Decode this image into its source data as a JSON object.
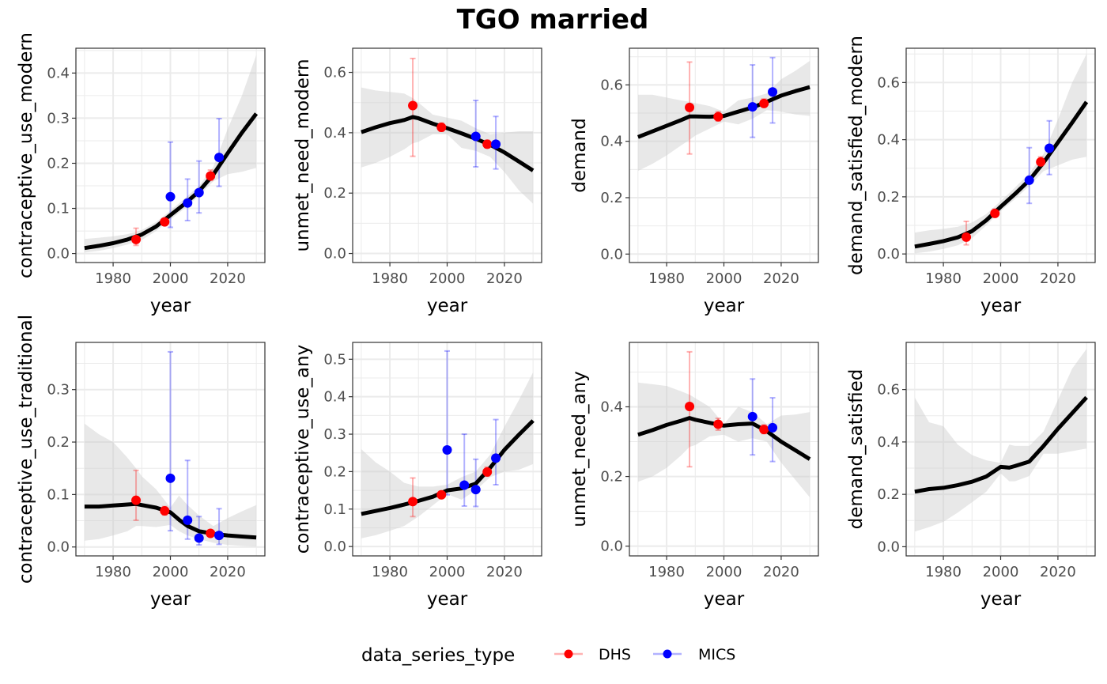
{
  "chart_data": {
    "type": "line",
    "title": "TGO married",
    "legend": {
      "title": "data_series_type",
      "position": "bottom",
      "entries": [
        {
          "name": "DHS",
          "color": "#ff0000"
        },
        {
          "name": "MICS",
          "color": "#0000ff"
        }
      ]
    },
    "colors": {
      "fit_line": "#000000",
      "ribbon": "#e6e6e6",
      "grid": "#ebebeb",
      "panel_border": "#333333"
    },
    "x_axis": {
      "label": "year",
      "range": [
        1970,
        2030
      ],
      "ticks": [
        1980,
        2000,
        2020
      ],
      "tick_labels": [
        "1980",
        "2000",
        "2020"
      ]
    },
    "panels": [
      {
        "ylabel": "contraceptive_use_modern",
        "ylim": [
          -0.02,
          0.455
        ],
        "yticks": [
          0.0,
          0.1,
          0.2,
          0.3,
          0.4
        ],
        "ytick_labels": [
          "0.0",
          "0.1",
          "0.2",
          "0.3",
          "0.4"
        ],
        "fit": {
          "x": [
            1970,
            1975,
            1980,
            1985,
            1990,
            1995,
            2000,
            2005,
            2010,
            2015,
            2020,
            2025,
            2030
          ],
          "median": [
            0.012,
            0.017,
            0.023,
            0.031,
            0.042,
            0.06,
            0.085,
            0.11,
            0.138,
            0.175,
            0.222,
            0.268,
            0.31
          ],
          "lower": [
            0.002,
            0.006,
            0.012,
            0.02,
            0.03,
            0.05,
            0.075,
            0.1,
            0.128,
            0.16,
            0.176,
            0.181,
            0.19
          ],
          "upper": [
            0.032,
            0.035,
            0.038,
            0.043,
            0.052,
            0.07,
            0.095,
            0.122,
            0.15,
            0.192,
            0.276,
            0.35,
            0.44
          ]
        },
        "observations": [
          {
            "series": "DHS",
            "year": 1988,
            "value": 0.031,
            "lower": 0.018,
            "upper": 0.056
          },
          {
            "series": "DHS",
            "year": 1998,
            "value": 0.07,
            "lower": 0.066,
            "upper": 0.075
          },
          {
            "series": "DHS",
            "year": 2014,
            "value": 0.172,
            "lower": 0.162,
            "upper": 0.185
          },
          {
            "series": "MICS",
            "year": 2000,
            "value": 0.126,
            "lower": 0.058,
            "upper": 0.247
          },
          {
            "series": "MICS",
            "year": 2006,
            "value": 0.112,
            "lower": 0.073,
            "upper": 0.165
          },
          {
            "series": "MICS",
            "year": 2010,
            "value": 0.135,
            "lower": 0.09,
            "upper": 0.205
          },
          {
            "series": "MICS",
            "year": 2017,
            "value": 0.213,
            "lower": 0.149,
            "upper": 0.299
          }
        ]
      },
      {
        "ylabel": "unmet_need_modern",
        "ylim": [
          -0.03,
          0.68
        ],
        "yticks": [
          0.0,
          0.2,
          0.4,
          0.6
        ],
        "ytick_labels": [
          "0.0",
          "0.2",
          "0.4",
          "0.6"
        ],
        "fit": {
          "x": [
            1970,
            1975,
            1980,
            1985,
            1988,
            1990,
            1995,
            2000,
            2005,
            2010,
            2015,
            2020,
            2025,
            2030
          ],
          "median": [
            0.402,
            0.418,
            0.432,
            0.442,
            0.452,
            0.448,
            0.43,
            0.415,
            0.398,
            0.38,
            0.36,
            0.335,
            0.305,
            0.275
          ],
          "lower": [
            0.285,
            0.3,
            0.32,
            0.345,
            0.365,
            0.37,
            0.395,
            0.395,
            0.35,
            0.34,
            0.32,
            0.27,
            0.21,
            0.165
          ],
          "upper": [
            0.55,
            0.54,
            0.535,
            0.53,
            0.515,
            0.5,
            0.46,
            0.45,
            0.44,
            0.415,
            0.395,
            0.4,
            0.405,
            0.405
          ]
        },
        "observations": [
          {
            "series": "DHS",
            "year": 1988,
            "value": 0.49,
            "lower": 0.322,
            "upper": 0.646
          },
          {
            "series": "DHS",
            "year": 1998,
            "value": 0.418,
            "lower": 0.405,
            "upper": 0.432
          },
          {
            "series": "DHS",
            "year": 2014,
            "value": 0.362,
            "lower": 0.35,
            "upper": 0.375
          },
          {
            "series": "MICS",
            "year": 2010,
            "value": 0.388,
            "lower": 0.287,
            "upper": 0.507
          },
          {
            "series": "MICS",
            "year": 2017,
            "value": 0.362,
            "lower": 0.28,
            "upper": 0.454
          }
        ]
      },
      {
        "ylabel": "demand",
        "ylim": [
          -0.03,
          0.73
        ],
        "yticks": [
          0.0,
          0.2,
          0.4,
          0.6
        ],
        "ytick_labels": [
          "0.0",
          "0.2",
          "0.4",
          "0.6"
        ],
        "fit": {
          "x": [
            1970,
            1975,
            1980,
            1985,
            1988,
            1990,
            1995,
            2000,
            2005,
            2010,
            2015,
            2020,
            2025,
            2030
          ],
          "median": [
            0.415,
            0.435,
            0.455,
            0.475,
            0.488,
            0.488,
            0.487,
            0.49,
            0.505,
            0.52,
            0.54,
            0.562,
            0.578,
            0.592
          ],
          "lower": [
            0.295,
            0.32,
            0.35,
            0.385,
            0.405,
            0.42,
            0.445,
            0.47,
            0.46,
            0.48,
            0.51,
            0.505,
            0.495,
            0.49
          ],
          "upper": [
            0.565,
            0.565,
            0.555,
            0.545,
            0.54,
            0.535,
            0.525,
            0.505,
            0.545,
            0.555,
            0.57,
            0.62,
            0.65,
            0.685
          ]
        },
        "observations": [
          {
            "series": "DHS",
            "year": 1988,
            "value": 0.52,
            "lower": 0.355,
            "upper": 0.681
          },
          {
            "series": "DHS",
            "year": 1998,
            "value": 0.487,
            "lower": 0.472,
            "upper": 0.505
          },
          {
            "series": "DHS",
            "year": 2014,
            "value": 0.534,
            "lower": 0.522,
            "upper": 0.55
          },
          {
            "series": "MICS",
            "year": 2010,
            "value": 0.522,
            "lower": 0.414,
            "upper": 0.671
          },
          {
            "series": "MICS",
            "year": 2017,
            "value": 0.575,
            "lower": 0.465,
            "upper": 0.697
          }
        ]
      },
      {
        "ylabel": "demand_satisfied_modern",
        "ylim": [
          -0.03,
          0.72
        ],
        "yticks": [
          0.0,
          0.2,
          0.4,
          0.6
        ],
        "ytick_labels": [
          "0.0",
          "0.2",
          "0.4",
          "0.6"
        ],
        "fit": {
          "x": [
            1970,
            1975,
            1980,
            1985,
            1990,
            1995,
            2000,
            2005,
            2010,
            2015,
            2020,
            2025,
            2030
          ],
          "median": [
            0.026,
            0.035,
            0.045,
            0.058,
            0.08,
            0.118,
            0.165,
            0.21,
            0.258,
            0.32,
            0.39,
            0.46,
            0.532
          ],
          "lower": [
            0.002,
            0.008,
            0.018,
            0.03,
            0.055,
            0.1,
            0.15,
            0.192,
            0.238,
            0.29,
            0.31,
            0.33,
            0.34
          ],
          "upper": [
            0.075,
            0.083,
            0.088,
            0.095,
            0.11,
            0.14,
            0.185,
            0.232,
            0.282,
            0.35,
            0.47,
            0.6,
            0.7
          ]
        },
        "observations": [
          {
            "series": "DHS",
            "year": 1988,
            "value": 0.059,
            "lower": 0.032,
            "upper": 0.114
          },
          {
            "series": "DHS",
            "year": 1998,
            "value": 0.142,
            "lower": 0.132,
            "upper": 0.157
          },
          {
            "series": "DHS",
            "year": 2014,
            "value": 0.322,
            "lower": 0.308,
            "upper": 0.34
          },
          {
            "series": "MICS",
            "year": 2010,
            "value": 0.258,
            "lower": 0.177,
            "upper": 0.372
          },
          {
            "series": "MICS",
            "year": 2017,
            "value": 0.37,
            "lower": 0.278,
            "upper": 0.466
          }
        ]
      },
      {
        "ylabel": "contraceptive_use_traditional",
        "ylim": [
          -0.017,
          0.39
        ],
        "yticks": [
          0.0,
          0.1,
          0.2,
          0.3
        ],
        "ytick_labels": [
          "0.0",
          "0.1",
          "0.2",
          "0.3"
        ],
        "fit": {
          "x": [
            1970,
            1975,
            1980,
            1985,
            1988,
            1990,
            1995,
            2000,
            2003,
            2006,
            2010,
            2015,
            2020,
            2025,
            2030
          ],
          "median": [
            0.077,
            0.077,
            0.079,
            0.081,
            0.082,
            0.08,
            0.075,
            0.066,
            0.052,
            0.04,
            0.03,
            0.025,
            0.022,
            0.02,
            0.018
          ],
          "lower": [
            0.012,
            0.015,
            0.022,
            0.03,
            0.04,
            0.04,
            0.038,
            0.042,
            0.03,
            0.022,
            0.015,
            0.008,
            0.004,
            0.002,
            0.001
          ],
          "upper": [
            0.235,
            0.215,
            0.2,
            0.17,
            0.15,
            0.135,
            0.11,
            0.075,
            0.098,
            0.08,
            0.06,
            0.04,
            0.055,
            0.068,
            0.08
          ]
        },
        "observations": [
          {
            "series": "DHS",
            "year": 1988,
            "value": 0.089,
            "lower": 0.051,
            "upper": 0.146
          },
          {
            "series": "DHS",
            "year": 1998,
            "value": 0.069,
            "lower": 0.061,
            "upper": 0.077
          },
          {
            "series": "DHS",
            "year": 2014,
            "value": 0.026,
            "lower": 0.022,
            "upper": 0.03
          },
          {
            "series": "MICS",
            "year": 2000,
            "value": 0.131,
            "lower": 0.031,
            "upper": 0.372
          },
          {
            "series": "MICS",
            "year": 2006,
            "value": 0.051,
            "lower": 0.015,
            "upper": 0.165
          },
          {
            "series": "MICS",
            "year": 2010,
            "value": 0.017,
            "lower": 0.004,
            "upper": 0.058
          },
          {
            "series": "MICS",
            "year": 2017,
            "value": 0.022,
            "lower": 0.005,
            "upper": 0.073
          }
        ]
      },
      {
        "ylabel": "contraceptive_use_any",
        "ylim": [
          -0.025,
          0.545
        ],
        "yticks": [
          0.0,
          0.1,
          0.2,
          0.3,
          0.4,
          0.5
        ],
        "ytick_labels": [
          "0.0",
          "0.1",
          "0.2",
          "0.3",
          "0.4",
          "0.5"
        ],
        "fit": {
          "x": [
            1970,
            1975,
            1980,
            1985,
            1990,
            1995,
            2000,
            2005,
            2010,
            2015,
            2020,
            2025,
            2030
          ],
          "median": [
            0.087,
            0.095,
            0.103,
            0.112,
            0.122,
            0.133,
            0.15,
            0.155,
            0.168,
            0.21,
            0.258,
            0.298,
            0.336
          ],
          "lower": [
            0.022,
            0.03,
            0.042,
            0.055,
            0.08,
            0.11,
            0.14,
            0.125,
            0.15,
            0.185,
            0.2,
            0.205,
            0.22
          ],
          "upper": [
            0.26,
            0.225,
            0.2,
            0.17,
            0.16,
            0.16,
            0.165,
            0.185,
            0.2,
            0.245,
            0.32,
            0.39,
            0.465
          ]
        },
        "observations": [
          {
            "series": "DHS",
            "year": 1988,
            "value": 0.12,
            "lower": 0.08,
            "upper": 0.183
          },
          {
            "series": "DHS",
            "year": 1998,
            "value": 0.138,
            "lower": 0.13,
            "upper": 0.148
          },
          {
            "series": "DHS",
            "year": 2014,
            "value": 0.199,
            "lower": 0.188,
            "upper": 0.212
          },
          {
            "series": "MICS",
            "year": 2000,
            "value": 0.258,
            "lower": 0.138,
            "upper": 0.522
          },
          {
            "series": "MICS",
            "year": 2006,
            "value": 0.164,
            "lower": 0.108,
            "upper": 0.3
          },
          {
            "series": "MICS",
            "year": 2010,
            "value": 0.152,
            "lower": 0.107,
            "upper": 0.233
          },
          {
            "series": "MICS",
            "year": 2017,
            "value": 0.236,
            "lower": 0.165,
            "upper": 0.339
          }
        ]
      },
      {
        "ylabel": "unmet_need_any",
        "ylim": [
          -0.028,
          0.585
        ],
        "yticks": [
          0.0,
          0.2,
          0.4
        ],
        "ytick_labels": [
          "0.0",
          "0.2",
          "0.4"
        ],
        "fit": {
          "x": [
            1970,
            1975,
            1980,
            1985,
            1988,
            1990,
            1995,
            2000,
            2005,
            2010,
            2015,
            2020,
            2025,
            2030
          ],
          "median": [
            0.32,
            0.333,
            0.348,
            0.36,
            0.368,
            0.363,
            0.354,
            0.346,
            0.35,
            0.352,
            0.33,
            0.3,
            0.275,
            0.25
          ],
          "lower": [
            0.185,
            0.2,
            0.225,
            0.26,
            0.285,
            0.29,
            0.315,
            0.32,
            0.3,
            0.31,
            0.3,
            0.24,
            0.19,
            0.14
          ],
          "upper": [
            0.47,
            0.465,
            0.46,
            0.445,
            0.435,
            0.425,
            0.4,
            0.35,
            0.4,
            0.385,
            0.35,
            0.375,
            0.378,
            0.385
          ]
        },
        "observations": [
          {
            "series": "DHS",
            "year": 1988,
            "value": 0.401,
            "lower": 0.228,
            "upper": 0.558
          },
          {
            "series": "DHS",
            "year": 1998,
            "value": 0.35,
            "lower": 0.333,
            "upper": 0.367
          },
          {
            "series": "DHS",
            "year": 2014,
            "value": 0.335,
            "lower": 0.323,
            "upper": 0.348
          },
          {
            "series": "MICS",
            "year": 2010,
            "value": 0.372,
            "lower": 0.262,
            "upper": 0.48
          },
          {
            "series": "MICS",
            "year": 2017,
            "value": 0.34,
            "lower": 0.243,
            "upper": 0.426
          }
        ]
      },
      {
        "ylabel": "demand_satisfied",
        "ylim": [
          -0.035,
          0.78
        ],
        "yticks": [
          0.0,
          0.2,
          0.4,
          0.6
        ],
        "ytick_labels": [
          "0.0",
          "0.2",
          "0.4",
          "0.6"
        ],
        "fit": {
          "x": [
            1970,
            1975,
            1980,
            1985,
            1990,
            1995,
            2000,
            2003,
            2005,
            2010,
            2015,
            2020,
            2025,
            2030
          ],
          "median": [
            0.21,
            0.22,
            0.225,
            0.235,
            0.248,
            0.268,
            0.305,
            0.302,
            0.308,
            0.325,
            0.385,
            0.45,
            0.51,
            0.57
          ],
          "lower": [
            0.058,
            0.075,
            0.095,
            0.13,
            0.17,
            0.21,
            0.28,
            0.25,
            0.25,
            0.27,
            0.355,
            0.355,
            0.365,
            0.375
          ],
          "upper": [
            0.57,
            0.475,
            0.46,
            0.39,
            0.35,
            0.33,
            0.32,
            0.39,
            0.385,
            0.385,
            0.44,
            0.56,
            0.68,
            0.755
          ]
        },
        "observations": []
      }
    ]
  }
}
